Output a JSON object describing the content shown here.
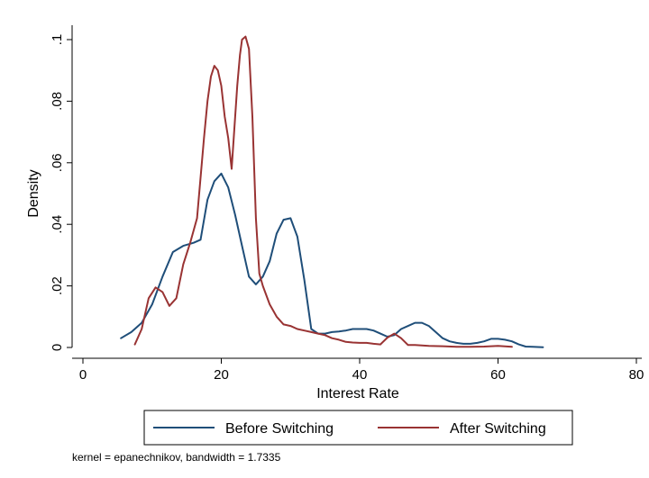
{
  "chart_data": {
    "type": "line",
    "title": "",
    "xlabel": "Interest Rate",
    "ylabel": "Density",
    "xlim": [
      0,
      80
    ],
    "ylim": [
      0,
      0.1
    ],
    "x_ticks": [
      0,
      20,
      40,
      60,
      80
    ],
    "x_tick_labels": [
      "0",
      "20",
      "40",
      "60",
      "80"
    ],
    "y_ticks": [
      0,
      0.02,
      0.04,
      0.06,
      0.08,
      0.1
    ],
    "y_tick_labels": [
      "0",
      ".02",
      ".04",
      ".06",
      ".08",
      ".1"
    ],
    "grid": false,
    "legend_position": "bottom",
    "note": "kernel = epanechnikov, bandwidth = 1.7335",
    "series": [
      {
        "name": "Before Switching",
        "color": "#1f4e79",
        "x": [
          5.5,
          7,
          8.5,
          10,
          11.5,
          13,
          14.5,
          16,
          17,
          18,
          19,
          20,
          21,
          22,
          23,
          24,
          25,
          26,
          27,
          28,
          29,
          30,
          31,
          32,
          33,
          34,
          35,
          36,
          37,
          38,
          39,
          40,
          41,
          42,
          43,
          44,
          45,
          46,
          47,
          48,
          49,
          50,
          51,
          52,
          53,
          54,
          55,
          56,
          57,
          58,
          59,
          60,
          61,
          62,
          63,
          64,
          65,
          66.5
        ],
        "y": [
          0.003,
          0.005,
          0.008,
          0.014,
          0.023,
          0.031,
          0.033,
          0.034,
          0.035,
          0.048,
          0.054,
          0.0565,
          0.052,
          0.043,
          0.033,
          0.023,
          0.0205,
          0.023,
          0.028,
          0.037,
          0.0415,
          0.042,
          0.036,
          0.022,
          0.006,
          0.0045,
          0.0045,
          0.005,
          0.0052,
          0.0055,
          0.006,
          0.006,
          0.006,
          0.0055,
          0.0045,
          0.0035,
          0.004,
          0.006,
          0.007,
          0.008,
          0.008,
          0.007,
          0.005,
          0.003,
          0.002,
          0.0015,
          0.0012,
          0.0012,
          0.0015,
          0.002,
          0.0028,
          0.0028,
          0.0025,
          0.002,
          0.001,
          0.0003,
          0.0002,
          0.0001
        ]
      },
      {
        "name": "After Switching",
        "color": "#993333",
        "x": [
          7.5,
          8.5,
          9.5,
          10.5,
          11.5,
          12.5,
          13.5,
          14.5,
          15.5,
          16.5,
          17.5,
          18,
          18.5,
          19,
          19.5,
          20,
          20.5,
          21,
          21.5,
          22,
          22.3,
          22.7,
          23,
          23.5,
          24,
          24.5,
          25,
          25.5,
          26,
          27,
          28,
          29,
          30,
          31,
          32,
          33,
          34,
          35,
          36,
          37,
          38,
          39,
          40,
          41,
          42,
          43,
          44,
          45,
          46,
          47,
          48,
          50,
          52,
          54,
          56,
          58,
          60,
          62
        ],
        "y": [
          0.001,
          0.006,
          0.016,
          0.0195,
          0.018,
          0.0135,
          0.016,
          0.027,
          0.034,
          0.042,
          0.068,
          0.08,
          0.088,
          0.0915,
          0.09,
          0.085,
          0.075,
          0.068,
          0.058,
          0.075,
          0.085,
          0.095,
          0.1,
          0.101,
          0.097,
          0.075,
          0.042,
          0.024,
          0.02,
          0.014,
          0.01,
          0.0075,
          0.007,
          0.006,
          0.0055,
          0.005,
          0.0045,
          0.004,
          0.003,
          0.0025,
          0.0018,
          0.0016,
          0.0015,
          0.0015,
          0.0012,
          0.001,
          0.0032,
          0.0045,
          0.003,
          0.0008,
          0.0008,
          0.0005,
          0.0004,
          0.0002,
          0.0002,
          0.0003,
          0.0005,
          0.0002
        ]
      }
    ]
  }
}
